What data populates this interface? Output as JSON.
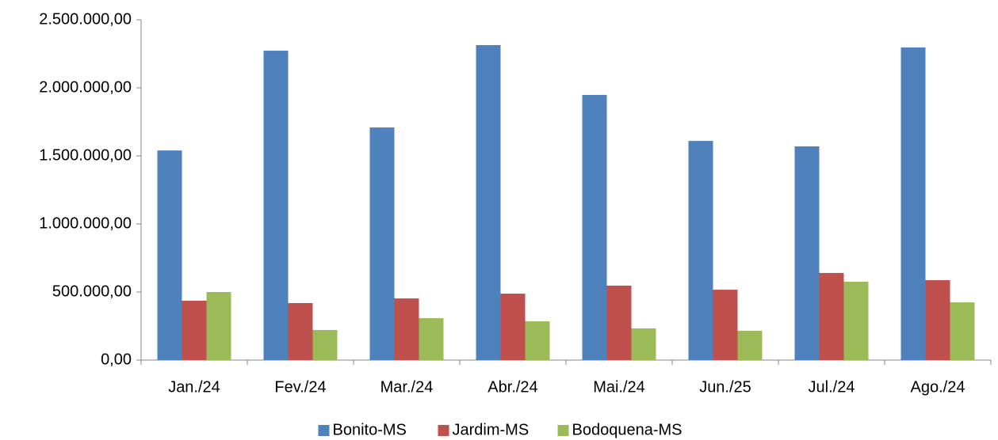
{
  "chart_data": {
    "type": "bar",
    "categories": [
      "Jan./24",
      "Fev./24",
      "Mar./24",
      "Abr./24",
      "Mai./24",
      "Jun./25",
      "Jul./24",
      "Ago./24"
    ],
    "series": [
      {
        "name": "Bonito-MS",
        "color": "#4f81bd",
        "values": [
          1540000,
          2273000,
          1709000,
          2314000,
          1948000,
          1610000,
          1570000,
          2297000
        ]
      },
      {
        "name": "Jardim-MS",
        "color": "#c0504d",
        "values": [
          436000,
          419000,
          453000,
          488000,
          547000,
          517000,
          640000,
          587000
        ]
      },
      {
        "name": "Bodoquena-MS",
        "color": "#9bbb59",
        "values": [
          500000,
          221000,
          308000,
          285000,
          233000,
          215000,
          576000,
          424000
        ]
      }
    ],
    "ylim": [
      0,
      2500000
    ],
    "yticks": [
      {
        "value": 0,
        "label": "0,00"
      },
      {
        "value": 500000,
        "label": "500.000,00"
      },
      {
        "value": 1000000,
        "label": "1.000.000,00"
      },
      {
        "value": 1500000,
        "label": "1.500.000,00"
      },
      {
        "value": 2000000,
        "label": "2.000.000,00"
      },
      {
        "value": 2500000,
        "label": "2.500.000,00"
      }
    ],
    "legend": "bottom"
  }
}
